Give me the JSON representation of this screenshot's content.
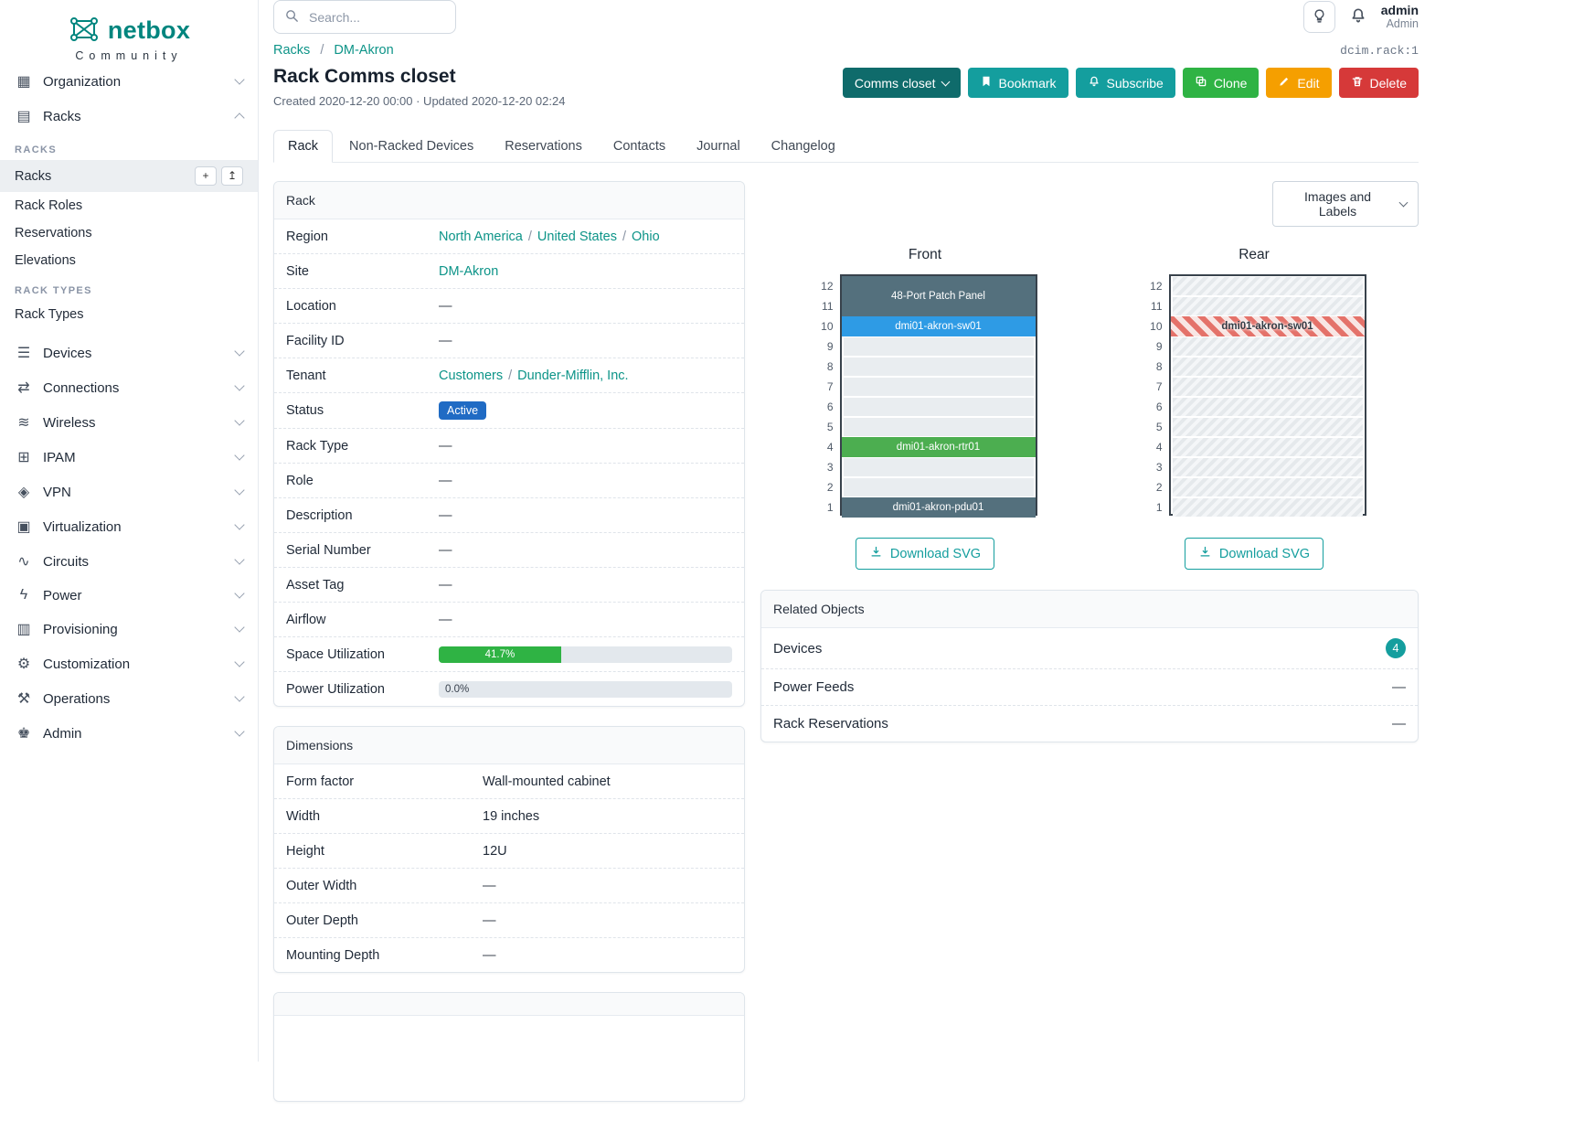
{
  "colors": {
    "brand": "#00857e",
    "accent": "#149e9e",
    "accent-dark": "#0f6b6b",
    "link": "#0d9488",
    "green": "#2fb344",
    "orange": "#f59f00",
    "red": "#d63939",
    "badge-blue": "#206bc4",
    "progress-green": "#2fb344",
    "device-slate": "#54707d",
    "device-blue": "#2e9be5",
    "device-green": "#4cae50",
    "hatch-red": "#e4726a"
  },
  "brand": {
    "name": "netbox",
    "tagline": "Community"
  },
  "topbar": {
    "search_placeholder": "Search...",
    "user_name": "admin",
    "user_role": "Admin"
  },
  "sidebar": {
    "top_items": [
      {
        "key": "organization",
        "label": "Organization",
        "glyph": "▦"
      },
      {
        "key": "racks",
        "label": "Racks",
        "glyph": "▤",
        "expanded": true
      }
    ],
    "racks_heading": "RACKS",
    "racks_items": {
      "racks": "Racks",
      "rack_roles": "Rack Roles",
      "reservations": "Reservations",
      "elevations": "Elevations"
    },
    "rack_types_heading": "RACK TYPES",
    "rack_types_item": "Rack Types",
    "add_button": "+",
    "import_button": "↥",
    "bottom_items": [
      {
        "key": "devices",
        "label": "Devices",
        "glyph": "☰"
      },
      {
        "key": "connections",
        "label": "Connections",
        "glyph": "⇄"
      },
      {
        "key": "wireless",
        "label": "Wireless",
        "glyph": "≋"
      },
      {
        "key": "ipam",
        "label": "IPAM",
        "glyph": "⊞"
      },
      {
        "key": "vpn",
        "label": "VPN",
        "glyph": "◈"
      },
      {
        "key": "virtualization",
        "label": "Virtualization",
        "glyph": "▣"
      },
      {
        "key": "circuits",
        "label": "Circuits",
        "glyph": "∿"
      },
      {
        "key": "power",
        "label": "Power",
        "glyph": "ϟ"
      },
      {
        "key": "provisioning",
        "label": "Provisioning",
        "glyph": "▥"
      },
      {
        "key": "customization",
        "label": "Customization",
        "glyph": "⚙"
      },
      {
        "key": "operations",
        "label": "Operations",
        "glyph": "⚒"
      },
      {
        "key": "admin",
        "label": "Admin",
        "glyph": "♚"
      }
    ]
  },
  "breadcrumb": {
    "items": [
      "Racks",
      "DM-Akron"
    ],
    "sep": "/",
    "object_id": "dcim.rack:1"
  },
  "page": {
    "title": "Rack Comms closet",
    "meta": "Created 2020-12-20 00:00 · Updated 2020-12-20 02:24"
  },
  "actions": {
    "group": "Comms closet",
    "bookmark": "Bookmark",
    "subscribe": "Subscribe",
    "clone": "Clone",
    "edit": "Edit",
    "delete": "Delete"
  },
  "tabs": [
    "Rack",
    "Non-Racked Devices",
    "Reservations",
    "Contacts",
    "Journal",
    "Changelog"
  ],
  "rack_card": {
    "title": "Rack",
    "sep": "/",
    "region_label": "Region",
    "region_links": [
      "North America",
      "United States",
      "Ohio"
    ],
    "site_label": "Site",
    "site_link": "DM-Akron",
    "location_label": "Location",
    "location_value": "—",
    "facility_label": "Facility ID",
    "facility_value": "—",
    "tenant_label": "Tenant",
    "tenant_links": [
      "Customers",
      "Dunder-Mifflin, Inc."
    ],
    "status_label": "Status",
    "status_value": "Active",
    "rack_type_label": "Rack Type",
    "rack_type_value": "—",
    "role_label": "Role",
    "role_value": "—",
    "description_label": "Description",
    "description_value": "—",
    "serial_label": "Serial Number",
    "serial_value": "—",
    "asset_label": "Asset Tag",
    "asset_value": "—",
    "airflow_label": "Airflow",
    "airflow_value": "—",
    "space_label": "Space Utilization",
    "space_percent": 41.7,
    "space_text": "41.7%",
    "power_label": "Power Utilization",
    "power_percent": 0,
    "power_text": "0.0%"
  },
  "dimensions_card": {
    "title": "Dimensions",
    "rows": [
      {
        "label": "Form factor",
        "value": "Wall-mounted cabinet"
      },
      {
        "label": "Width",
        "value": "19 inches"
      },
      {
        "label": "Height",
        "value": "12U"
      },
      {
        "label": "Outer Width",
        "value": "—"
      },
      {
        "label": "Outer Depth",
        "value": "—"
      },
      {
        "label": "Mounting Depth",
        "value": "—"
      }
    ]
  },
  "elevations": {
    "view_selector": "Images and Labels",
    "units": 12,
    "front": {
      "title": "Front",
      "download": "Download SVG",
      "striped_background": false,
      "devices": [
        {
          "name": "48-Port Patch Panel",
          "top_unit": 12,
          "u_height": 2,
          "color": "device-slate"
        },
        {
          "name": "dmi01-akron-sw01",
          "top_unit": 10,
          "u_height": 1,
          "color": "device-blue"
        },
        {
          "name": "dmi01-akron-rtr01",
          "top_unit": 4,
          "u_height": 1,
          "color": "device-green"
        },
        {
          "name": "dmi01-akron-pdu01",
          "top_unit": 1,
          "u_height": 1,
          "color": "device-slate"
        }
      ]
    },
    "rear": {
      "title": "Rear",
      "download": "Download SVG",
      "striped_background": true,
      "devices": [
        {
          "name": "dmi01-akron-sw01",
          "top_unit": 10,
          "u_height": 1,
          "color": "hatch-red",
          "hatched": true
        }
      ]
    }
  },
  "related_card": {
    "title": "Related Objects",
    "rows": [
      {
        "label": "Devices",
        "badge": "4"
      },
      {
        "label": "Power Feeds",
        "value": "—"
      },
      {
        "label": "Rack Reservations",
        "value": "—"
      }
    ]
  }
}
